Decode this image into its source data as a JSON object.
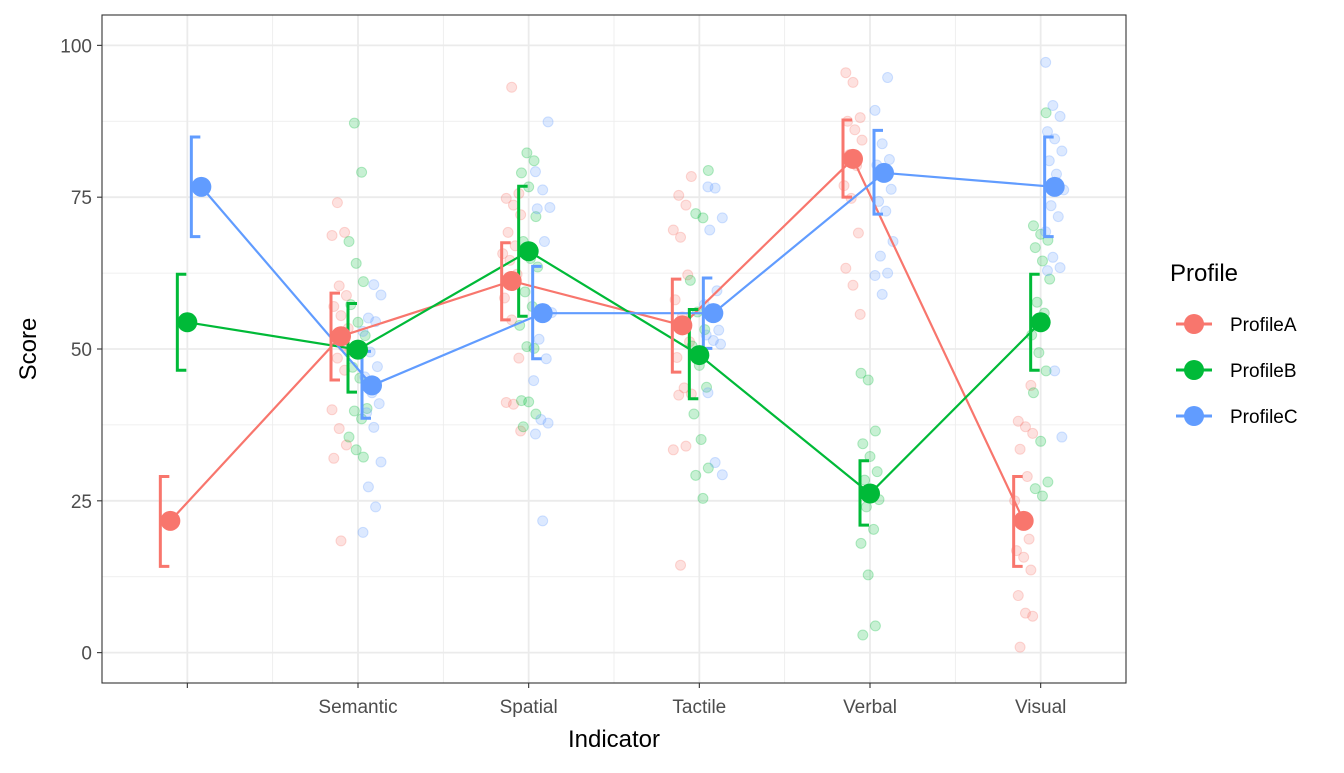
{
  "chart_data": {
    "type": "line",
    "xlabel": "Indicator",
    "ylabel": "Score",
    "categories": [
      "",
      "Semantic",
      "Spatial",
      "Tactile",
      "Verbal",
      "Visual"
    ],
    "ylim": [
      -5,
      105
    ],
    "yticks": [
      0,
      25,
      50,
      75,
      100
    ],
    "grid": true,
    "legend": {
      "title": "Profile",
      "position": "right",
      "entries": [
        "ProfileA",
        "ProfileB",
        "ProfileC"
      ]
    },
    "series": [
      {
        "name": "ProfileA",
        "color": "#F8766D",
        "means": [
          21.7,
          52.1,
          61.2,
          53.9,
          81.3,
          21.7
        ],
        "ci_low": [
          14.2,
          44.9,
          54.8,
          46.2,
          75.0,
          14.2
        ],
        "ci_high": [
          29.0,
          59.2,
          67.5,
          61.5,
          87.7,
          29.0
        ],
        "raw_points": [
          [],
          [
            18.4,
            32.0,
            34.2,
            36.9,
            40.0,
            46.5,
            48.5,
            49.6,
            50.5,
            51.3,
            53.4,
            55.5,
            57.0,
            58.8,
            60.4,
            68.7,
            69.2,
            74.1
          ],
          [
            36.5,
            40.9,
            41.2,
            48.5,
            54.8,
            58.4,
            62.3,
            64.6,
            65.7,
            67.0,
            69.2,
            72.1,
            73.7,
            74.8,
            75.6,
            93.1
          ],
          [
            14.4,
            33.4,
            34.0,
            42.4,
            42.6,
            43.6,
            48.6,
            51.2,
            55.3,
            58.1,
            62.2,
            68.4,
            69.6,
            73.7,
            75.3,
            78.4
          ],
          [
            55.7,
            60.5,
            63.3,
            69.1,
            74.8,
            76.9,
            80.2,
            82.0,
            84.4,
            86.1,
            87.5,
            88.1,
            93.9,
            95.5
          ],
          [
            0.9,
            6.0,
            6.5,
            9.4,
            13.6,
            15.7,
            16.8,
            18.7,
            22.2,
            25.0,
            29.0,
            33.5,
            36.1,
            37.2,
            38.1,
            44.0
          ]
        ]
      },
      {
        "name": "ProfileB",
        "color": "#00BA38",
        "means": [
          54.4,
          49.9,
          66.1,
          49.0,
          26.2,
          54.4
        ],
        "ci_low": [
          46.5,
          42.9,
          55.4,
          41.8,
          21.0,
          46.5
        ],
        "ci_high": [
          62.3,
          57.5,
          76.8,
          56.5,
          31.6,
          62.3
        ],
        "raw_points": [
          [],
          [
            32.2,
            33.4,
            35.5,
            38.5,
            39.8,
            40.2,
            45.2,
            47.0,
            52.2,
            54.4,
            57.3,
            61.1,
            64.1,
            67.7,
            79.1,
            87.2
          ],
          [
            37.2,
            39.3,
            41.3,
            41.5,
            50.1,
            50.4,
            53.9,
            57.0,
            59.4,
            63.5,
            64.9,
            67.7,
            71.8,
            76.7,
            79.0,
            81.0,
            82.3
          ],
          [
            25.4,
            29.2,
            30.4,
            35.1,
            39.3,
            43.7,
            47.3,
            50.5,
            53.2,
            56.1,
            61.3,
            71.6,
            72.3,
            79.4
          ],
          [
            2.9,
            4.4,
            12.8,
            18.0,
            20.3,
            24.0,
            25.2,
            26.7,
            28.4,
            29.8,
            32.3,
            34.4,
            36.5,
            44.9,
            46.0
          ],
          [
            25.8,
            27.0,
            28.1,
            34.8,
            42.8,
            46.4,
            49.4,
            52.3,
            55.9,
            57.7,
            61.5,
            64.5,
            66.7,
            67.9,
            68.9,
            70.3,
            88.9
          ]
        ]
      },
      {
        "name": "ProfileC",
        "color": "#619CFF",
        "means": [
          76.7,
          44.0,
          55.9,
          55.9,
          79.0,
          76.7
        ],
        "ci_low": [
          68.5,
          38.6,
          48.4,
          50.1,
          72.2,
          68.5
        ],
        "ci_high": [
          84.9,
          49.6,
          63.6,
          61.7,
          86.0,
          84.9
        ],
        "raw_points": [
          [],
          [
            19.8,
            24.0,
            27.3,
            31.4,
            37.1,
            39.5,
            41.0,
            42.8,
            45.4,
            47.1,
            49.5,
            52.9,
            54.5,
            55.1,
            58.9,
            60.6
          ],
          [
            21.7,
            36.0,
            37.8,
            38.4,
            44.8,
            48.4,
            51.6,
            56.0,
            67.7,
            73.1,
            73.3,
            76.2,
            79.2,
            87.4
          ],
          [
            29.3,
            31.3,
            42.8,
            50.8,
            51.4,
            52.3,
            53.1,
            55.9,
            57.3,
            59.6,
            69.6,
            71.6,
            76.5,
            76.7
          ],
          [
            59.0,
            62.1,
            62.5,
            65.3,
            67.7,
            72.7,
            74.3,
            76.3,
            78.8,
            80.3,
            81.2,
            83.8,
            89.3,
            94.7
          ],
          [
            35.5,
            46.4,
            62.9,
            63.4,
            65.1,
            69.3,
            71.8,
            73.6,
            76.2,
            78.8,
            81.0,
            82.6,
            84.6,
            85.8,
            88.3,
            90.1,
            97.2
          ]
        ]
      }
    ]
  }
}
